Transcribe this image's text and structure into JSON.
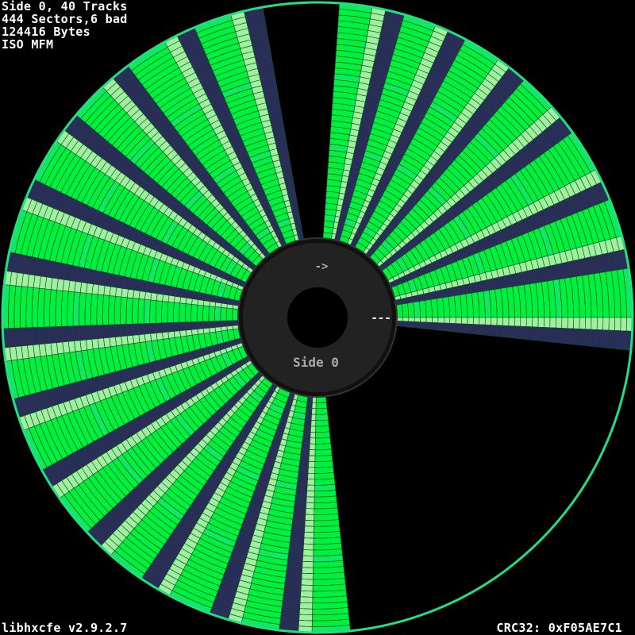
{
  "info": {
    "side_tracks": "Side 0, 40 Tracks",
    "sectors": "444 Sectors,6 bad",
    "bytes": "124416 Bytes",
    "encoding": "ISO MFM"
  },
  "footer": {
    "version": "libhxcfe v2.9.2.7",
    "crc": "CRC32: 0xF05AE7C1"
  },
  "disk": {
    "side_label": "Side 0",
    "arrow": "->",
    "index_mark": "---",
    "tracks": 40,
    "sector_start_angles": [
      -86,
      -74,
      -62,
      -49,
      -36,
      -22,
      -9,
      6,
      20,
      33,
      46,
      59,
      72,
      84,
      97,
      110,
      124,
      137,
      151,
      165,
      178,
      192,
      206,
      220,
      233,
      247,
      260
    ],
    "unformatted_span": [
      90,
      180
    ],
    "bad_sector": {
      "track_from": 0,
      "track_to": 3,
      "start": -6,
      "end": 16
    },
    "colors": {
      "good": "#00f040",
      "good_alt": "#10e860",
      "gap": "#a0f0a0",
      "unformatted": "#2c2c5c",
      "bad": "#ff8030",
      "hub": "#222222",
      "hole": "#000000",
      "label": "#aaaaaa"
    }
  }
}
